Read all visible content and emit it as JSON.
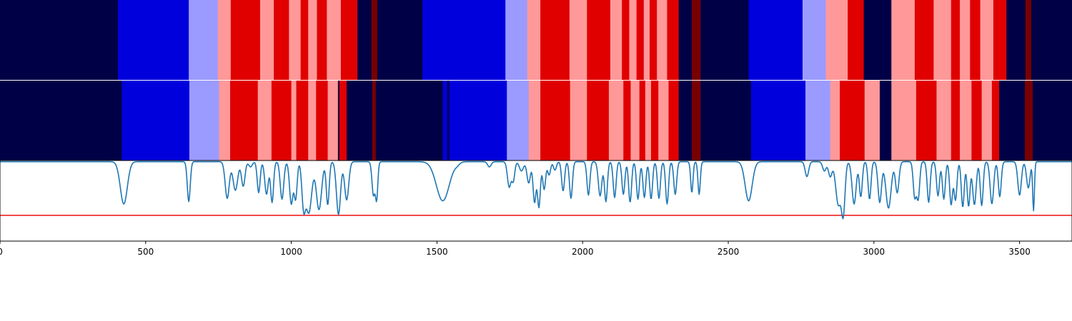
{
  "chart_data": {
    "type": "segmentation",
    "xlim": [
      0,
      3680
    ],
    "xticks": [
      0,
      500,
      1000,
      1500,
      2000,
      2500,
      3000,
      3500
    ],
    "xtick_labels": [
      "0",
      "500",
      "1000",
      "1500",
      "2000",
      "2500",
      "3000",
      "3500"
    ],
    "palette": {
      "0": "#000046",
      "1": "#0000dc",
      "2": "#9b9bff",
      "3": "#ff9999",
      "4": "#e00000",
      "5": "#780000"
    },
    "rows": [
      {
        "segments": [
          [
            0,
            405,
            0
          ],
          [
            405,
            648,
            1
          ],
          [
            648,
            748,
            2
          ],
          [
            748,
            792,
            3
          ],
          [
            792,
            893,
            4
          ],
          [
            893,
            940,
            3
          ],
          [
            940,
            992,
            4
          ],
          [
            992,
            1032,
            3
          ],
          [
            1032,
            1058,
            4
          ],
          [
            1058,
            1088,
            3
          ],
          [
            1088,
            1122,
            4
          ],
          [
            1122,
            1170,
            3
          ],
          [
            1170,
            1227,
            4
          ],
          [
            1227,
            1275,
            0
          ],
          [
            1275,
            1295,
            5
          ],
          [
            1295,
            1450,
            0
          ],
          [
            1450,
            1735,
            1
          ],
          [
            1735,
            1810,
            2
          ],
          [
            1810,
            1855,
            3
          ],
          [
            1855,
            1955,
            4
          ],
          [
            1955,
            2015,
            3
          ],
          [
            2015,
            2095,
            4
          ],
          [
            2095,
            2135,
            3
          ],
          [
            2135,
            2160,
            4
          ],
          [
            2160,
            2185,
            3
          ],
          [
            2185,
            2210,
            4
          ],
          [
            2210,
            2230,
            3
          ],
          [
            2230,
            2255,
            4
          ],
          [
            2255,
            2290,
            3
          ],
          [
            2290,
            2330,
            4
          ],
          [
            2330,
            2375,
            0
          ],
          [
            2375,
            2405,
            5
          ],
          [
            2405,
            2570,
            0
          ],
          [
            2570,
            2755,
            1
          ],
          [
            2755,
            2835,
            2
          ],
          [
            2835,
            2910,
            3
          ],
          [
            2910,
            2965,
            4
          ],
          [
            2965,
            3060,
            0
          ],
          [
            3060,
            3140,
            3
          ],
          [
            3140,
            3205,
            4
          ],
          [
            3205,
            3265,
            3
          ],
          [
            3265,
            3295,
            4
          ],
          [
            3295,
            3330,
            3
          ],
          [
            3330,
            3365,
            4
          ],
          [
            3365,
            3410,
            3
          ],
          [
            3410,
            3455,
            4
          ],
          [
            3455,
            3520,
            0
          ],
          [
            3520,
            3540,
            5
          ],
          [
            3540,
            3680,
            0
          ]
        ]
      },
      {
        "segments": [
          [
            0,
            418,
            0
          ],
          [
            418,
            650,
            1
          ],
          [
            650,
            752,
            2
          ],
          [
            752,
            790,
            3
          ],
          [
            790,
            885,
            4
          ],
          [
            885,
            932,
            3
          ],
          [
            932,
            1000,
            4
          ],
          [
            1000,
            1017,
            3
          ],
          [
            1017,
            1058,
            4
          ],
          [
            1058,
            1085,
            3
          ],
          [
            1085,
            1125,
            4
          ],
          [
            1125,
            1160,
            3
          ],
          [
            1160,
            1165,
            0
          ],
          [
            1165,
            1190,
            4
          ],
          [
            1190,
            1278,
            0
          ],
          [
            1278,
            1290,
            5
          ],
          [
            1290,
            1520,
            0
          ],
          [
            1520,
            1535,
            1
          ],
          [
            1535,
            1542,
            0
          ],
          [
            1542,
            1740,
            1
          ],
          [
            1740,
            1815,
            2
          ],
          [
            1815,
            1855,
            3
          ],
          [
            1855,
            1957,
            4
          ],
          [
            1957,
            2015,
            3
          ],
          [
            2015,
            2090,
            4
          ],
          [
            2090,
            2140,
            3
          ],
          [
            2140,
            2165,
            4
          ],
          [
            2165,
            2195,
            3
          ],
          [
            2195,
            2215,
            4
          ],
          [
            2215,
            2235,
            3
          ],
          [
            2235,
            2260,
            4
          ],
          [
            2260,
            2295,
            3
          ],
          [
            2295,
            2330,
            4
          ],
          [
            2330,
            2375,
            0
          ],
          [
            2375,
            2405,
            5
          ],
          [
            2405,
            2578,
            0
          ],
          [
            2578,
            2765,
            1
          ],
          [
            2765,
            2850,
            2
          ],
          [
            2850,
            2883,
            3
          ],
          [
            2883,
            2968,
            4
          ],
          [
            2968,
            3020,
            3
          ],
          [
            3020,
            3060,
            0
          ],
          [
            3060,
            3145,
            3
          ],
          [
            3145,
            3215,
            4
          ],
          [
            3215,
            3265,
            3
          ],
          [
            3265,
            3295,
            4
          ],
          [
            3295,
            3335,
            3
          ],
          [
            3335,
            3370,
            4
          ],
          [
            3370,
            3405,
            3
          ],
          [
            3405,
            3430,
            4
          ],
          [
            3430,
            3518,
            0
          ],
          [
            3518,
            3545,
            5
          ],
          [
            3545,
            3680,
            0
          ]
        ]
      }
    ],
    "signal": {
      "color": "#1f77b4",
      "ylim": [
        0,
        1
      ],
      "threshold": 0.32,
      "threshold_color": "#ee1111",
      "baseline": 0.985,
      "dips": [
        [
          425,
          0.46,
          12
        ],
        [
          648,
          0.49,
          5
        ],
        [
          780,
          0.53,
          7
        ],
        [
          808,
          0.63,
          8
        ],
        [
          835,
          0.68,
          6
        ],
        [
          860,
          0.92,
          6
        ],
        [
          888,
          0.6,
          5
        ],
        [
          915,
          0.58,
          6
        ],
        [
          934,
          0.48,
          5
        ],
        [
          968,
          0.52,
          6
        ],
        [
          1000,
          0.46,
          6
        ],
        [
          1015,
          0.53,
          5
        ],
        [
          1042,
          0.48,
          6
        ],
        [
          1060,
          0.35,
          10
        ],
        [
          1095,
          0.39,
          9
        ],
        [
          1125,
          0.45,
          5
        ],
        [
          1162,
          0.33,
          7
        ],
        [
          1190,
          0.51,
          7
        ],
        [
          1282,
          0.57,
          5
        ],
        [
          1293,
          0.53,
          4
        ],
        [
          1520,
          0.5,
          22
        ],
        [
          1570,
          0.96,
          8
        ],
        [
          1680,
          0.92,
          6
        ],
        [
          1748,
          0.67,
          6
        ],
        [
          1762,
          0.75,
          5
        ],
        [
          1790,
          0.87,
          7
        ],
        [
          1815,
          0.72,
          6
        ],
        [
          1835,
          0.48,
          5
        ],
        [
          1850,
          0.42,
          5
        ],
        [
          1868,
          0.64,
          5
        ],
        [
          1885,
          0.82,
          5
        ],
        [
          1905,
          0.88,
          5
        ],
        [
          1933,
          0.62,
          5
        ],
        [
          1960,
          0.53,
          5
        ],
        [
          2020,
          0.57,
          5
        ],
        [
          2060,
          0.56,
          6
        ],
        [
          2080,
          0.49,
          5
        ],
        [
          2110,
          0.54,
          5
        ],
        [
          2140,
          0.58,
          5
        ],
        [
          2163,
          0.48,
          5
        ],
        [
          2190,
          0.52,
          5
        ],
        [
          2212,
          0.54,
          5
        ],
        [
          2235,
          0.52,
          5
        ],
        [
          2262,
          0.53,
          5
        ],
        [
          2290,
          0.46,
          5
        ],
        [
          2318,
          0.58,
          5
        ],
        [
          2375,
          0.6,
          4
        ],
        [
          2400,
          0.58,
          4
        ],
        [
          2570,
          0.5,
          12
        ],
        [
          2770,
          0.8,
          6
        ],
        [
          2830,
          0.87,
          6
        ],
        [
          2850,
          0.8,
          6
        ],
        [
          2878,
          0.45,
          9
        ],
        [
          2895,
          0.38,
          6
        ],
        [
          2932,
          0.46,
          7
        ],
        [
          2955,
          0.55,
          5
        ],
        [
          2985,
          0.52,
          5
        ],
        [
          3020,
          0.48,
          6
        ],
        [
          3050,
          0.41,
          9
        ],
        [
          3080,
          0.6,
          6
        ],
        [
          3140,
          0.55,
          5
        ],
        [
          3152,
          0.53,
          5
        ],
        [
          3188,
          0.48,
          5
        ],
        [
          3220,
          0.56,
          5
        ],
        [
          3240,
          0.52,
          5
        ],
        [
          3265,
          0.45,
          5
        ],
        [
          3280,
          0.51,
          5
        ],
        [
          3305,
          0.42,
          5
        ],
        [
          3325,
          0.43,
          5
        ],
        [
          3345,
          0.45,
          6
        ],
        [
          3370,
          0.44,
          5
        ],
        [
          3405,
          0.46,
          6
        ],
        [
          3432,
          0.55,
          5
        ],
        [
          3500,
          0.57,
          6
        ],
        [
          3530,
          0.66,
          6
        ],
        [
          3548,
          0.38,
          3
        ]
      ]
    }
  }
}
